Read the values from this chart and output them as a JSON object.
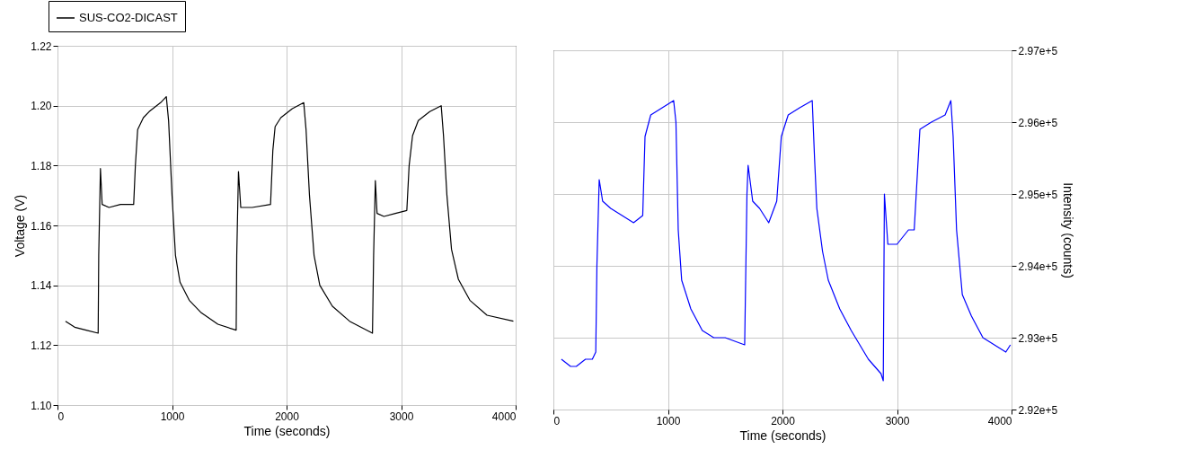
{
  "chart_data": [
    {
      "type": "line",
      "xlabel": "Time (seconds)",
      "ylabel": "Voltage (V)",
      "xlim": [
        0,
        4000
      ],
      "xticks": [
        0,
        1000,
        2000,
        3000,
        4000
      ],
      "ylim": [
        1.1,
        1.22
      ],
      "yticks": [
        {
          "value": 1.1,
          "label": "1.10"
        },
        {
          "value": 1.12,
          "label": "1.12"
        },
        {
          "value": 1.14,
          "label": "1.14"
        },
        {
          "value": 1.16,
          "label": "1.16"
        },
        {
          "value": 1.18,
          "label": "1.18"
        },
        {
          "value": 1.2,
          "label": "1.20"
        },
        {
          "value": 1.22,
          "label": "1.22"
        }
      ],
      "grid": true,
      "legend": "top left",
      "line_style": "solid",
      "series": [
        {
          "name": "SUS-CO2-DICAST",
          "color": "#000000",
          "x": [
            70,
            150,
            250,
            355,
            360,
            375,
            390,
            450,
            550,
            665,
            680,
            700,
            750,
            800,
            900,
            950,
            970,
            1000,
            1030,
            1070,
            1150,
            1250,
            1400,
            1560,
            1565,
            1580,
            1600,
            1700,
            1860,
            1880,
            1900,
            1950,
            2050,
            2150,
            2170,
            2200,
            2240,
            2290,
            2400,
            2550,
            2750,
            2760,
            2775,
            2790,
            2850,
            2950,
            3050,
            3070,
            3100,
            3150,
            3250,
            3350,
            3370,
            3400,
            3440,
            3500,
            3600,
            3750,
            3980
          ],
          "values": [
            1.128,
            1.126,
            1.125,
            1.124,
            1.15,
            1.179,
            1.167,
            1.166,
            1.167,
            1.167,
            1.18,
            1.192,
            1.196,
            1.198,
            1.201,
            1.203,
            1.195,
            1.17,
            1.15,
            1.141,
            1.135,
            1.131,
            1.127,
            1.125,
            1.15,
            1.178,
            1.166,
            1.166,
            1.167,
            1.185,
            1.193,
            1.196,
            1.199,
            1.201,
            1.192,
            1.17,
            1.15,
            1.14,
            1.133,
            1.128,
            1.124,
            1.15,
            1.175,
            1.164,
            1.163,
            1.164,
            1.165,
            1.18,
            1.19,
            1.195,
            1.198,
            1.2,
            1.19,
            1.17,
            1.152,
            1.142,
            1.135,
            1.13,
            1.128
          ]
        }
      ]
    },
    {
      "type": "line",
      "xlabel": "Time (seconds)",
      "y2label": "Intensity (counts)",
      "xlim": [
        0,
        4000
      ],
      "xticks": [
        0,
        1000,
        2000,
        3000,
        4000
      ],
      "y2lim": [
        292000,
        297000
      ],
      "y2ticks": [
        {
          "value": 292000,
          "label": "2.92e+5"
        },
        {
          "value": 293000,
          "label": "2.93e+5"
        },
        {
          "value": 294000,
          "label": "2.94e+5"
        },
        {
          "value": 295000,
          "label": "2.95e+5"
        },
        {
          "value": 296000,
          "label": "2.96e+5"
        },
        {
          "value": 297000,
          "label": "2.97e+5"
        }
      ],
      "grid": true,
      "line_style": "solid",
      "series": [
        {
          "color": "#0000ff",
          "axis": "y2",
          "x": [
            70,
            150,
            200,
            280,
            340,
            370,
            380,
            400,
            430,
            500,
            600,
            700,
            780,
            800,
            850,
            950,
            1050,
            1070,
            1090,
            1120,
            1200,
            1300,
            1400,
            1500,
            1670,
            1690,
            1700,
            1740,
            1800,
            1880,
            1950,
            1990,
            2050,
            2150,
            2260,
            2280,
            2300,
            2350,
            2400,
            2500,
            2600,
            2750,
            2860,
            2880,
            2890,
            2920,
            3000,
            3100,
            3150,
            3200,
            3300,
            3420,
            3470,
            3490,
            3520,
            3570,
            3650,
            3750,
            3850,
            3950,
            3990
          ],
          "values": [
            292700,
            292600,
            292600,
            292700,
            292700,
            292800,
            294000,
            295200,
            294900,
            294800,
            294700,
            294600,
            294700,
            295800,
            296100,
            296200,
            296300,
            296000,
            294500,
            293800,
            293400,
            293100,
            293000,
            293000,
            292900,
            295000,
            295400,
            294900,
            294800,
            294600,
            294900,
            295800,
            296100,
            296200,
            296300,
            295500,
            294800,
            294200,
            293800,
            293400,
            293100,
            292700,
            292500,
            292400,
            295000,
            294300,
            294300,
            294500,
            294500,
            295900,
            296000,
            296100,
            296300,
            295800,
            294500,
            293600,
            293300,
            293000,
            292900,
            292800,
            292900
          ]
        }
      ]
    }
  ]
}
